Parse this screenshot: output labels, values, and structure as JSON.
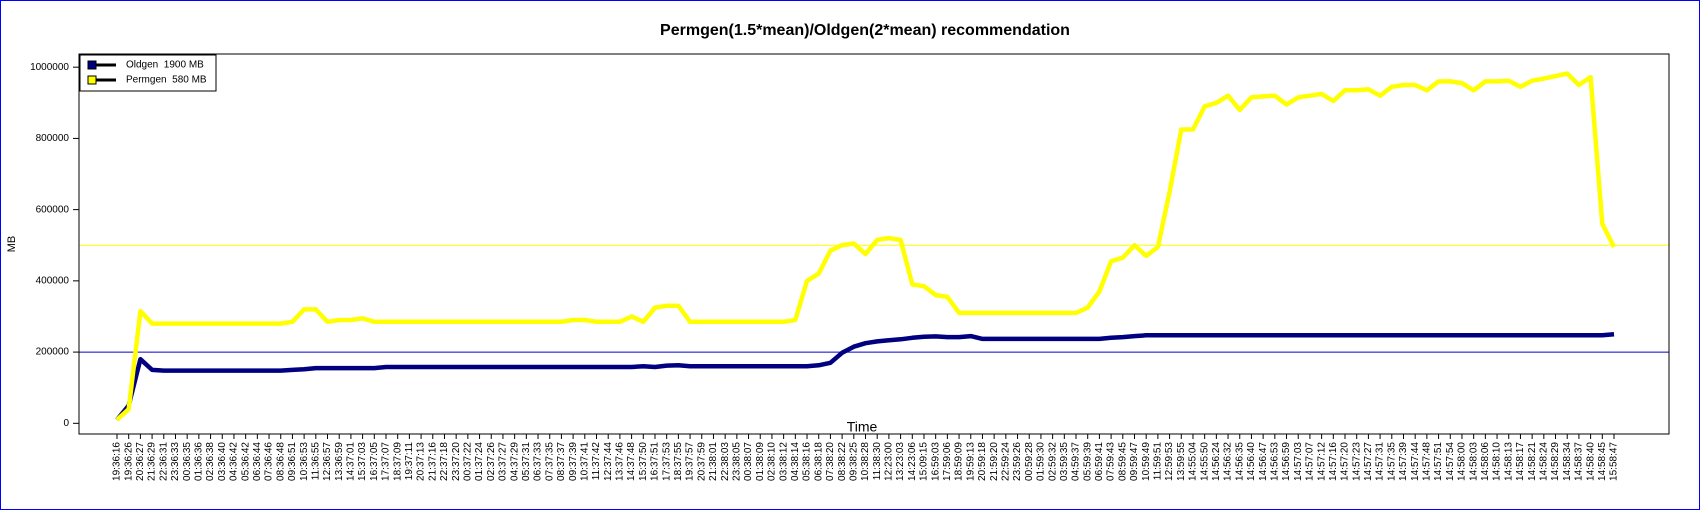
{
  "chart_data": {
    "type": "line",
    "title": "Permgen(1.5*mean)/Oldgen(2*mean)  recommendation",
    "x_label": "Time",
    "y_label": "MB",
    "categories": [
      "19:36:16",
      "19:36:26",
      "20:36:27",
      "21:36:29",
      "22:36:31",
      "23:36:33",
      "00:36:35",
      "01:36:36",
      "02:36:38",
      "03:36:40",
      "04:36:42",
      "05:36:42",
      "06:36:44",
      "07:36:46",
      "08:36:48",
      "09:36:51",
      "10:36:53",
      "11:36:55",
      "12:36:57",
      "13:36:59",
      "14:37:01",
      "15:37:03",
      "16:37:05",
      "17:37:07",
      "18:37:09",
      "19:37:11",
      "20:37:13",
      "21:37:16",
      "22:37:18",
      "23:37:20",
      "00:37:22",
      "01:37:24",
      "02:37:26",
      "03:37:27",
      "04:37:29",
      "05:37:31",
      "06:37:33",
      "07:37:35",
      "08:37:37",
      "09:37:39",
      "10:37:41",
      "11:37:42",
      "12:37:44",
      "13:37:46",
      "14:37:48",
      "15:37:50",
      "16:37:51",
      "17:37:53",
      "18:37:55",
      "19:37:57",
      "20:37:59",
      "21:38:01",
      "22:38:03",
      "23:38:05",
      "00:38:07",
      "01:38:09",
      "02:38:10",
      "03:38:12",
      "04:38:14",
      "05:38:16",
      "06:38:18",
      "07:38:20",
      "08:38:22",
      "09:38:25",
      "10:38:28",
      "11:38:30",
      "12:23:00",
      "13:23:03",
      "14:23:06",
      "15:09:15",
      "16:59:03",
      "17:59:06",
      "18:59:09",
      "19:59:13",
      "20:59:18",
      "21:59:20",
      "22:59:24",
      "23:59:26",
      "00:59:28",
      "01:59:30",
      "02:59:32",
      "03:59:35",
      "04:59:37",
      "05:59:39",
      "06:59:41",
      "07:59:43",
      "08:59:45",
      "09:59:47",
      "10:59:49",
      "11:59:51",
      "12:59:53",
      "13:59:55",
      "14:55:04",
      "14:55:50",
      "14:56:24",
      "14:56:32",
      "14:56:35",
      "14:56:40",
      "14:56:47",
      "14:56:53",
      "14:56:59",
      "14:57:03",
      "14:57:07",
      "14:57:12",
      "14:57:16",
      "14:57:20",
      "14:57:23",
      "14:57:27",
      "14:57:31",
      "14:57:35",
      "14:57:39",
      "14:57:44",
      "14:57:48",
      "14:57:51",
      "14:57:54",
      "14:58:00",
      "14:58:03",
      "14:58:06",
      "14:58:10",
      "14:58:13",
      "14:58:17",
      "14:58:21",
      "14:58:24",
      "14:58:29",
      "14:58:34",
      "14:58:37",
      "14:58:40",
      "14:58:45",
      "15:58:47"
    ],
    "series": [
      {
        "name": "Oldgen  1900 MB",
        "color": "#000080",
        "values": [
          10000,
          50000,
          180000,
          150000,
          148000,
          148000,
          148000,
          148000,
          148000,
          148000,
          148000,
          148000,
          148000,
          148000,
          148000,
          150000,
          152000,
          155000,
          155000,
          155000,
          155000,
          155000,
          155000,
          158000,
          158000,
          158000,
          158000,
          158000,
          158000,
          158000,
          158000,
          158000,
          158000,
          158000,
          158000,
          158000,
          158000,
          158000,
          158000,
          158000,
          158000,
          158000,
          158000,
          158000,
          158000,
          160000,
          158000,
          162000,
          163000,
          160000,
          160000,
          160000,
          160000,
          160000,
          160000,
          160000,
          160000,
          160000,
          160000,
          160000,
          163000,
          170000,
          198000,
          215000,
          225000,
          230000,
          233000,
          236000,
          240000,
          243000,
          244000,
          242000,
          242000,
          245000,
          237000,
          237000,
          237000,
          237000,
          237000,
          237000,
          237000,
          237000,
          237000,
          237000,
          237000,
          240000,
          242000,
          245000,
          247000,
          247000,
          247000,
          247000,
          247000,
          247000,
          247000,
          247000,
          247000,
          247000,
          247000,
          247000,
          247000,
          247000,
          247000,
          247000,
          247000,
          247000,
          247000,
          247000,
          247000,
          247000,
          247000,
          247000,
          247000,
          247000,
          247000,
          247000,
          247000,
          247000,
          247000,
          247000,
          247000,
          247000,
          247000,
          247000,
          247000,
          247000,
          247000,
          247000,
          250000
        ]
      },
      {
        "name": "Permgen  580 MB",
        "color": "#ffff00",
        "values": [
          10000,
          40000,
          315000,
          280000,
          280000,
          280000,
          280000,
          280000,
          280000,
          280000,
          280000,
          280000,
          280000,
          280000,
          280000,
          285000,
          320000,
          320000,
          285000,
          290000,
          290000,
          295000,
          285000,
          285000,
          285000,
          285000,
          285000,
          285000,
          285000,
          285000,
          285000,
          285000,
          285000,
          285000,
          285000,
          285000,
          285000,
          285000,
          285000,
          290000,
          290000,
          285000,
          285000,
          285000,
          300000,
          285000,
          325000,
          330000,
          330000,
          285000,
          285000,
          285000,
          285000,
          285000,
          285000,
          285000,
          285000,
          285000,
          290000,
          400000,
          420000,
          485000,
          500000,
          505000,
          475000,
          515000,
          520000,
          515000,
          390000,
          385000,
          360000,
          355000,
          310000,
          310000,
          310000,
          310000,
          310000,
          310000,
          310000,
          310000,
          310000,
          310000,
          310000,
          325000,
          370000,
          455000,
          465000,
          500000,
          470000,
          495000,
          650000,
          825000,
          825000,
          890000,
          900000,
          920000,
          880000,
          915000,
          918000,
          920000,
          895000,
          915000,
          920000,
          925000,
          905000,
          935000,
          935000,
          938000,
          920000,
          945000,
          950000,
          950000,
          935000,
          960000,
          960000,
          955000,
          935000,
          960000,
          960000,
          962000,
          945000,
          962000,
          968000,
          975000,
          982000,
          950000,
          972000,
          560000,
          495000
        ]
      }
    ],
    "hlines": [
      {
        "value": 500000,
        "color": "#ffff00"
      },
      {
        "value": 200000,
        "color": "#0000cc"
      }
    ],
    "ylim": [
      -30000,
      1037000
    ],
    "yticks": [
      0,
      200000,
      400000,
      600000,
      800000,
      1000000
    ],
    "legend": "top-left"
  }
}
